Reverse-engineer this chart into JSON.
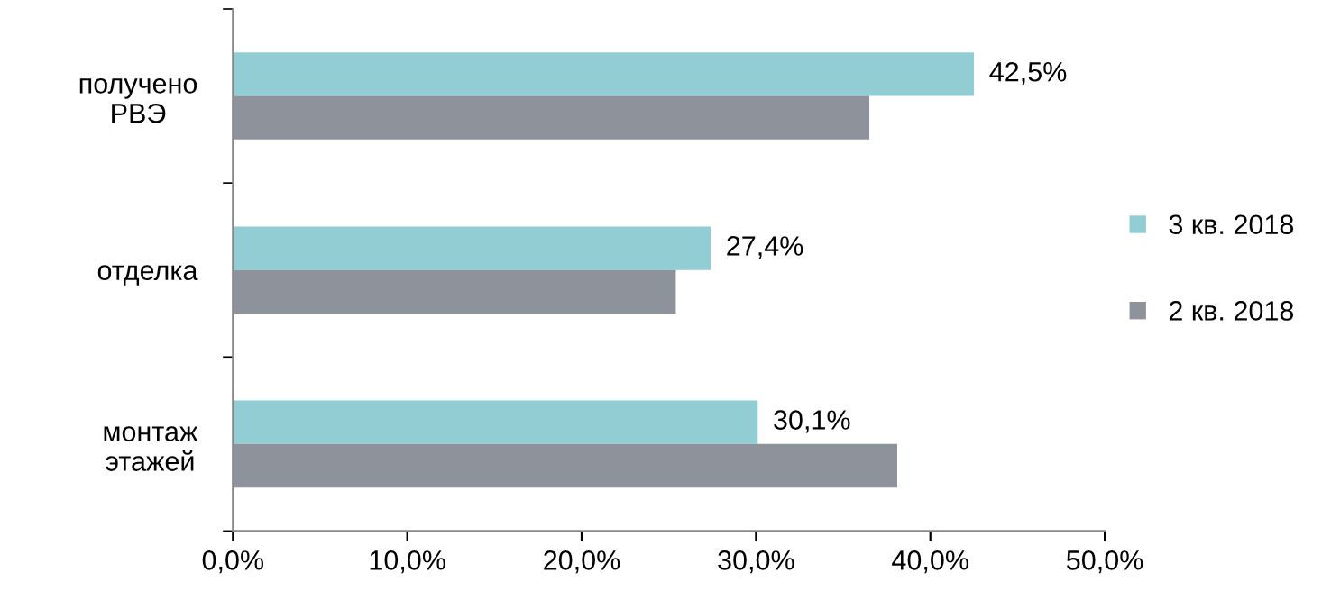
{
  "chart_data": {
    "type": "bar",
    "orientation": "horizontal",
    "categories": [
      "получено\nРВЭ",
      "отделка",
      "монтаж\nэтажей"
    ],
    "series": [
      {
        "name": "3 кв. 2018",
        "color": "#92cdd4",
        "values": [
          42.5,
          27.4,
          30.1
        ],
        "value_labels": [
          "42,5%",
          "27,4%",
          "30,1%"
        ]
      },
      {
        "name": "2 кв. 2018",
        "color": "#8e939b",
        "values": [
          36.5,
          25.4,
          38.1
        ]
      }
    ],
    "xlim": [
      0,
      50
    ],
    "xticks": [
      {
        "value": 0,
        "label": "0,0%"
      },
      {
        "value": 10,
        "label": "10,0%"
      },
      {
        "value": 20,
        "label": "20,0%"
      },
      {
        "value": 30,
        "label": "30,0%"
      },
      {
        "value": 40,
        "label": "40,0%"
      },
      {
        "value": 50,
        "label": "50,0%"
      }
    ],
    "grid": false,
    "legend": "right"
  }
}
